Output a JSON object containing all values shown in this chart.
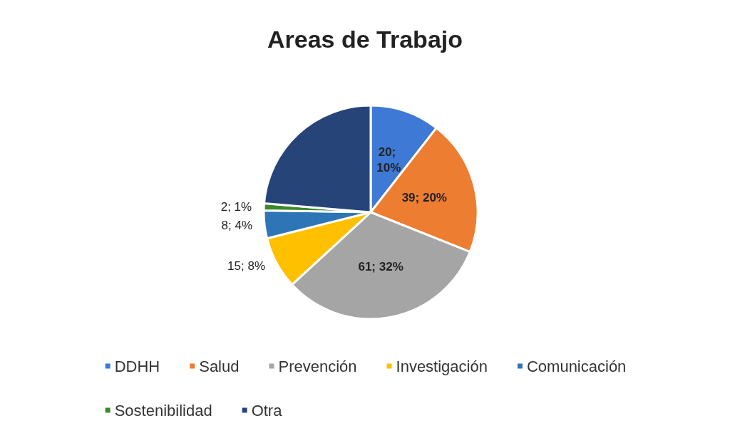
{
  "chart_data": {
    "type": "pie",
    "title": "Areas de Trabajo",
    "categories": [
      "DDHH",
      "Salud",
      "Prevención",
      "Investigación",
      "Comunicación",
      "Sostenibilidad",
      "Otra"
    ],
    "values": [
      20,
      39,
      61,
      15,
      8,
      2,
      45
    ],
    "colors": [
      "#3f79d6",
      "#ed7d31",
      "#a5a5a5",
      "#ffc000",
      "#2e75b6",
      "#3a8a2a",
      "#264478"
    ],
    "value_labels": [
      "20; 10%",
      "39; 20%",
      "61; 32%",
      "15; 8%",
      "8; 4%",
      "2; 1%",
      null
    ],
    "legend": "bottom"
  }
}
